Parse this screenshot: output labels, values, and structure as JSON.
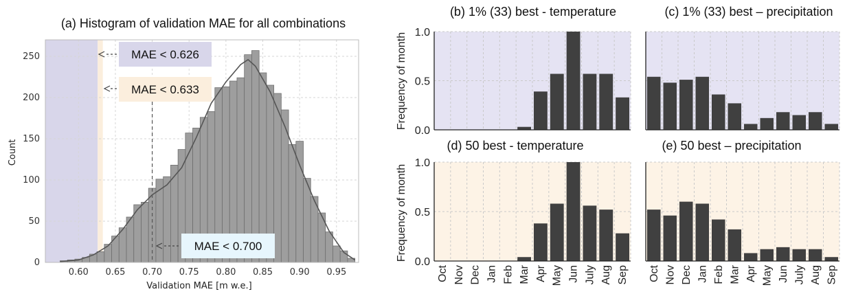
{
  "chart_data": [
    {
      "type": "bar",
      "title": "(a) Histogram of validation MAE for all combinations",
      "xlabel": "Validation MAE [m w.e.]",
      "ylabel": "Count",
      "xlim": [
        0.555,
        0.98
      ],
      "ylim": [
        0,
        270
      ],
      "xticks": [
        "0.60",
        "0.65",
        "0.70",
        "0.75",
        "0.80",
        "0.85",
        "0.90",
        "0.95"
      ],
      "yticks": [
        "0",
        "50",
        "100",
        "150",
        "200",
        "250"
      ],
      "bin_width": 0.01,
      "bins": [
        {
          "x0": 0.575,
          "count": 2
        },
        {
          "x0": 0.585,
          "count": 3
        },
        {
          "x0": 0.595,
          "count": 4
        },
        {
          "x0": 0.605,
          "count": 6
        },
        {
          "x0": 0.615,
          "count": 10
        },
        {
          "x0": 0.625,
          "count": 13
        },
        {
          "x0": 0.635,
          "count": 22
        },
        {
          "x0": 0.645,
          "count": 32
        },
        {
          "x0": 0.655,
          "count": 42
        },
        {
          "x0": 0.665,
          "count": 55
        },
        {
          "x0": 0.675,
          "count": 70
        },
        {
          "x0": 0.685,
          "count": 73
        },
        {
          "x0": 0.695,
          "count": 90
        },
        {
          "x0": 0.705,
          "count": 101
        },
        {
          "x0": 0.715,
          "count": 104
        },
        {
          "x0": 0.725,
          "count": 118
        },
        {
          "x0": 0.735,
          "count": 137
        },
        {
          "x0": 0.745,
          "count": 157
        },
        {
          "x0": 0.755,
          "count": 163
        },
        {
          "x0": 0.765,
          "count": 176
        },
        {
          "x0": 0.775,
          "count": 183
        },
        {
          "x0": 0.785,
          "count": 212
        },
        {
          "x0": 0.795,
          "count": 213
        },
        {
          "x0": 0.805,
          "count": 220
        },
        {
          "x0": 0.815,
          "count": 224
        },
        {
          "x0": 0.825,
          "count": 252
        },
        {
          "x0": 0.835,
          "count": 257
        },
        {
          "x0": 0.845,
          "count": 230
        },
        {
          "x0": 0.855,
          "count": 215
        },
        {
          "x0": 0.865,
          "count": 205
        },
        {
          "x0": 0.875,
          "count": 185
        },
        {
          "x0": 0.885,
          "count": 143
        },
        {
          "x0": 0.895,
          "count": 147
        },
        {
          "x0": 0.905,
          "count": 102
        },
        {
          "x0": 0.915,
          "count": 80
        },
        {
          "x0": 0.925,
          "count": 60
        },
        {
          "x0": 0.935,
          "count": 37
        },
        {
          "x0": 0.945,
          "count": 20
        },
        {
          "x0": 0.955,
          "count": 14
        },
        {
          "x0": 0.965,
          "count": 5
        }
      ],
      "kde_curve": [
        [
          0.575,
          1
        ],
        [
          0.6,
          3
        ],
        [
          0.62,
          9
        ],
        [
          0.64,
          20
        ],
        [
          0.66,
          40
        ],
        [
          0.68,
          64
        ],
        [
          0.7,
          82
        ],
        [
          0.72,
          94
        ],
        [
          0.74,
          115
        ],
        [
          0.76,
          152
        ],
        [
          0.78,
          193
        ],
        [
          0.8,
          219
        ],
        [
          0.82,
          240
        ],
        [
          0.83,
          246
        ],
        [
          0.84,
          238
        ],
        [
          0.86,
          207
        ],
        [
          0.88,
          165
        ],
        [
          0.9,
          118
        ],
        [
          0.92,
          75
        ],
        [
          0.94,
          38
        ],
        [
          0.96,
          12
        ],
        [
          0.975,
          3
        ]
      ],
      "thresholds": [
        {
          "value": 0.626,
          "label": "MAE < 0.626",
          "color": "#d8d6ea"
        },
        {
          "value": 0.633,
          "label": "MAE < 0.633",
          "color": "#fbeedd"
        },
        {
          "value": 0.7,
          "label": "MAE < 0.700",
          "color": "#e7f6fd"
        }
      ],
      "grid": true
    },
    {
      "type": "bar",
      "title": "(b) 1% (33) best - temperature",
      "ylabel": "Frequency of month",
      "categories": [
        "Oct",
        "Nov",
        "Dec",
        "Jan",
        "Feb",
        "Mar",
        "Apr",
        "May",
        "Jun",
        "July",
        "Aug",
        "Sep"
      ],
      "values": [
        0,
        0,
        0,
        0,
        0,
        0.03,
        0.39,
        0.57,
        1.0,
        0.57,
        0.57,
        0.33
      ],
      "ylim": [
        0,
        1.0
      ],
      "yticks": [
        "0.0",
        "0.5",
        "1.0"
      ],
      "background": "#e5e3f3"
    },
    {
      "type": "bar",
      "title": "(c) 1% (33) best – precipitation",
      "categories": [
        "Oct",
        "Nov",
        "Dec",
        "Jan",
        "Feb",
        "Mar",
        "Apr",
        "May",
        "Jun",
        "July",
        "Aug",
        "Sep"
      ],
      "values": [
        0.54,
        0.48,
        0.51,
        0.54,
        0.36,
        0.27,
        0.06,
        0.12,
        0.18,
        0.15,
        0.18,
        0.06
      ],
      "ylim": [
        0,
        1.0
      ],
      "background": "#e5e3f3"
    },
    {
      "type": "bar",
      "title": "(d) 50 best - temperature",
      "ylabel": "Frequency of month",
      "categories": [
        "Oct",
        "Nov",
        "Dec",
        "Jan",
        "Feb",
        "Mar",
        "Apr",
        "May",
        "Jun",
        "July",
        "Aug",
        "Sep"
      ],
      "values": [
        0,
        0,
        0,
        0,
        0,
        0.04,
        0.38,
        0.58,
        1.0,
        0.56,
        0.52,
        0.28
      ],
      "ylim": [
        0,
        1.0
      ],
      "yticks": [
        "0.0",
        "0.5",
        "1.0"
      ],
      "background": "#fdf3e6"
    },
    {
      "type": "bar",
      "title": "(e) 50 best – precipitation",
      "categories": [
        "Oct",
        "Nov",
        "Dec",
        "Jan",
        "Feb",
        "Mar",
        "Apr",
        "May",
        "Jun",
        "July",
        "Aug",
        "Sep"
      ],
      "values": [
        0.52,
        0.46,
        0.6,
        0.58,
        0.42,
        0.32,
        0.08,
        0.12,
        0.14,
        0.12,
        0.12,
        0.04
      ],
      "ylim": [
        0,
        1.0
      ],
      "background": "#fdf3e6"
    }
  ]
}
